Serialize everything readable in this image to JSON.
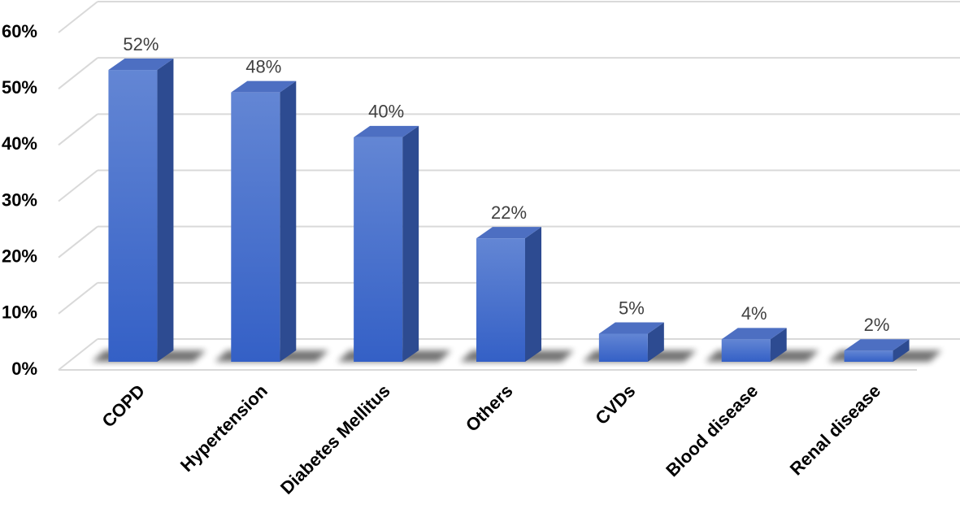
{
  "chart_data": {
    "type": "bar3d",
    "categories": [
      "COPD",
      "Hypertension",
      "Diabetes Mellitus",
      "Others",
      "CVDs",
      "Blood disease",
      "Renal disease"
    ],
    "values": [
      52,
      48,
      40,
      22,
      5,
      4,
      2
    ],
    "value_labels": [
      "52%",
      "48%",
      "40%",
      "22%",
      "5%",
      "4%",
      "2%"
    ],
    "color": "#4169c8",
    "ylim": [
      0,
      60
    ],
    "yticks": [
      {
        "value": 0,
        "label": "0%"
      },
      {
        "value": 10,
        "label": "10%"
      },
      {
        "value": 20,
        "label": "20%"
      },
      {
        "value": 30,
        "label": "30%"
      },
      {
        "value": 40,
        "label": "40%"
      },
      {
        "value": 50,
        "label": "50%"
      },
      {
        "value": 60,
        "label": "60%"
      }
    ],
    "grid": true
  }
}
